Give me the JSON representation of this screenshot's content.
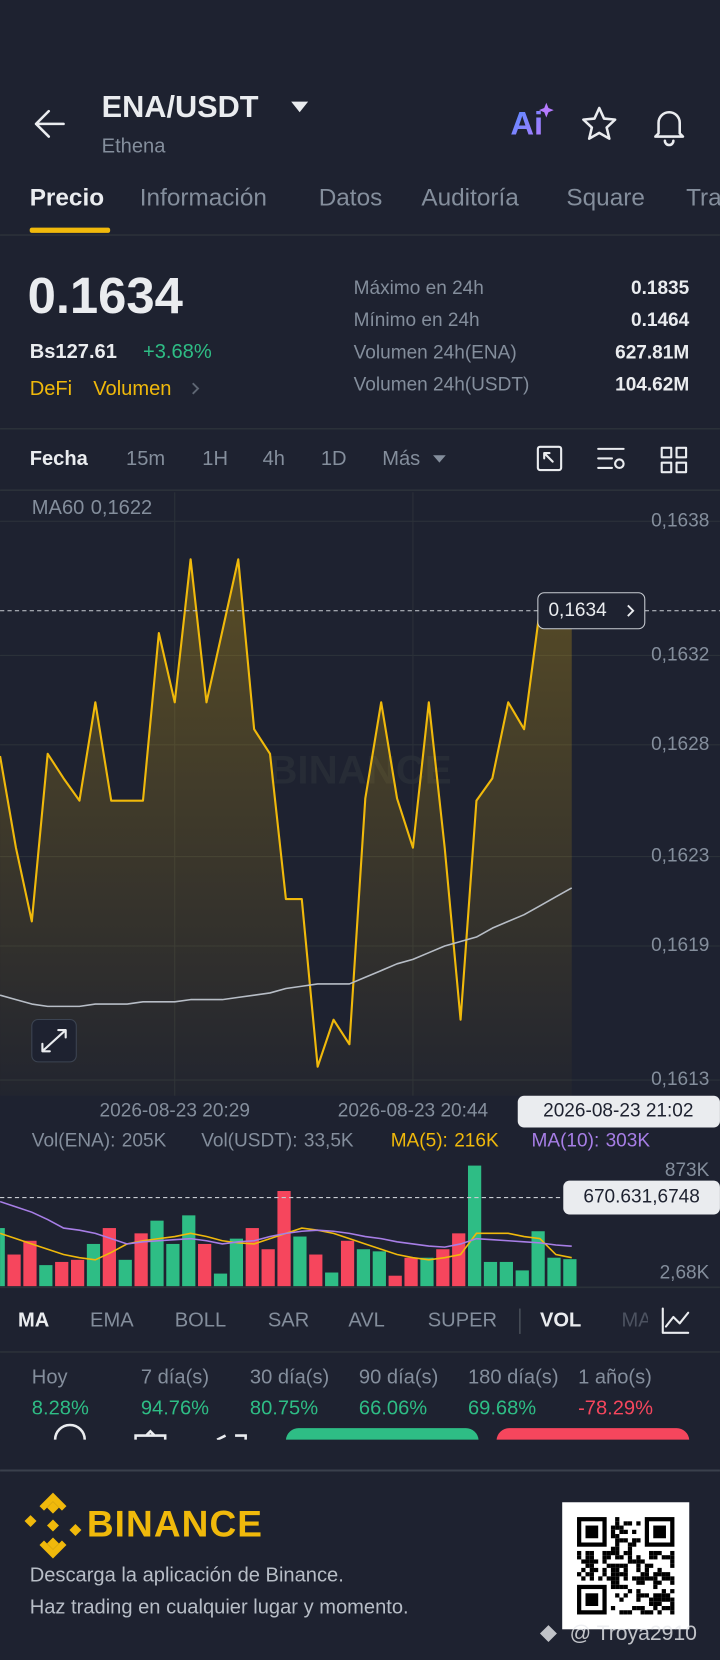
{
  "header": {
    "pair": "ENA/USDT",
    "name": "Ethena",
    "ai": "Ai"
  },
  "tabs": [
    "Precio",
    "Información",
    "Datos",
    "Auditoría",
    "Square",
    "Tra"
  ],
  "price": {
    "last": "0.1634",
    "local": "Bs127.61",
    "change": "+3.68%",
    "tags": [
      "DeFi",
      "Volumen"
    ]
  },
  "stats": [
    {
      "label": "Máximo en 24h",
      "value": "0.1835"
    },
    {
      "label": "Mínimo en 24h",
      "value": "0.1464"
    },
    {
      "label": "Volumen 24h(ENA)",
      "value": "627.81M"
    },
    {
      "label": "Volumen 24h(USDT)",
      "value": "104.62M"
    }
  ],
  "intervals": [
    "Fecha",
    "15m",
    "1H",
    "4h",
    "1D",
    "Más"
  ],
  "chart_data": [
    {
      "type": "line",
      "categories": [
        null,
        null,
        null,
        null,
        null,
        null,
        null,
        null,
        null,
        null,
        null,
        "2026-08-23 20:29",
        null,
        null,
        null,
        null,
        null,
        null,
        null,
        null,
        null,
        null,
        null,
        null,
        null,
        null,
        "2026-08-23 20:44",
        null,
        null,
        null,
        null,
        null,
        null,
        null,
        null,
        null,
        null
      ],
      "series": [
        {
          "color": "#f0b90b",
          "values": [
            0.16275,
            0.16234,
            0.16201,
            0.16276,
            0.16265,
            0.16255,
            0.16299,
            0.16255,
            0.16255,
            0.16255,
            0.1633,
            0.16299,
            0.16363,
            0.16299,
            0.16331,
            0.16363,
            0.16287,
            0.16276,
            0.16211,
            0.16211,
            0.16136,
            0.16157,
            0.16146,
            0.16256,
            0.16299,
            0.16256,
            0.16234,
            0.16299,
            0.16234,
            0.16157,
            0.16255,
            0.16265,
            0.16299,
            0.16287,
            0.16341,
            0.16341,
            0.16341
          ]
        },
        {
          "name": "MA60",
          "value_label": "0,1622",
          "color": "#b7bdc6",
          "values": [
            0.16168,
            0.16166,
            0.16164,
            0.16163,
            0.16163,
            0.16163,
            0.16164,
            0.16164,
            0.16164,
            0.16165,
            0.16165,
            0.16165,
            0.16166,
            0.16166,
            0.16166,
            0.16167,
            0.16168,
            0.16169,
            0.16171,
            0.16172,
            0.16173,
            0.16173,
            0.16173,
            0.16176,
            0.16179,
            0.16182,
            0.16184,
            0.16187,
            0.1619,
            0.16192,
            0.16194,
            0.16198,
            0.16201,
            0.16204,
            0.16208,
            0.16212,
            0.16216
          ]
        }
      ],
      "ylim": [
        0.16123,
        0.16393
      ],
      "yticks": [
        {
          "value": 0.1638,
          "label": "0,1638"
        },
        {
          "value": 0.1632,
          "label": "0,1632"
        },
        {
          "value": 0.1628,
          "label": "0,1628"
        },
        {
          "value": 0.1623,
          "label": "0,1623"
        },
        {
          "value": 0.1619,
          "label": "0,1619"
        },
        {
          "value": 0.1613,
          "label": "0,1613"
        }
      ],
      "last_price": {
        "value": 0.1634,
        "label": "0,1634"
      },
      "crosshair_x_label": "2026-08-23 21:02",
      "watermark": "BINANCE",
      "grid": true
    },
    {
      "type": "bar",
      "series": [
        {
          "name": "Vol(ENA):",
          "value_label": "205K",
          "values": [
            440000,
            240000,
            344000,
            160000,
            184000,
            200000,
            320000,
            440000,
            200000,
            400000,
            496000,
            320000,
            536000,
            320000,
            96000,
            360000,
            440000,
            280000,
            720000,
            376000,
            240000,
            104000,
            344000,
            280000,
            264000,
            80000,
            216000,
            216000,
            280000,
            400000,
            912000,
            184000,
            184000,
            120000,
            416000,
            216000,
            205000
          ],
          "colors": [
            "#2ebd85",
            "#f6465d",
            "#f6465d",
            "#2ebd85",
            "#f6465d",
            "#f6465d",
            "#2ebd85",
            "#f6465d",
            "#2ebd85",
            "#f6465d",
            "#2ebd85",
            "#2ebd85",
            "#2ebd85",
            "#f6465d",
            "#2ebd85",
            "#2ebd85",
            "#f6465d",
            "#f6465d",
            "#f6465d",
            "#2ebd85",
            "#f6465d",
            "#2ebd85",
            "#f6465d",
            "#2ebd85",
            "#2ebd85",
            "#f6465d",
            "#f6465d",
            "#2ebd85",
            "#f6465d",
            "#f6465d",
            "#2ebd85",
            "#2ebd85",
            "#2ebd85",
            "#2ebd85",
            "#2ebd85",
            "#2ebd85",
            "#2ebd85"
          ]
        },
        {
          "name": "MA(5):",
          "value_label": "216K",
          "color": "#f0b90b",
          "values": [
            400000,
            360000,
            320000,
            280000,
            240000,
            216000,
            200000,
            256000,
            320000,
            344000,
            360000,
            376000,
            400000,
            376000,
            344000,
            328000,
            320000,
            360000,
            400000,
            440000,
            424000,
            400000,
            360000,
            320000,
            280000,
            240000,
            216000,
            200000,
            216000,
            240000,
            400000,
            400000,
            400000,
            376000,
            360000,
            240000,
            216000
          ]
        },
        {
          "name": "MA(10):",
          "value_label": "303K",
          "color": "#a77ee6",
          "values": [
            640000,
            600000,
            560000,
            504000,
            440000,
            424000,
            400000,
            360000,
            320000,
            336000,
            344000,
            352000,
            360000,
            344000,
            320000,
            336000,
            344000,
            376000,
            400000,
            416000,
            424000,
            416000,
            400000,
            376000,
            360000,
            336000,
            320000,
            304000,
            296000,
            320000,
            360000,
            352000,
            344000,
            336000,
            328000,
            312000,
            303000
          ]
        }
      ],
      "usdt_volume": {
        "name": "Vol(USDT):",
        "value_label": "33,5K"
      },
      "ylim": [
        0,
        920000
      ],
      "yticks": [
        {
          "value": 873000,
          "label": "873K"
        },
        {
          "value": 2680,
          "label": "2,68K"
        }
      ],
      "crosshair": {
        "value": 670631.6748,
        "label": "670.631,6748"
      }
    }
  ],
  "indicators": [
    "MA",
    "EMA",
    "BOLL",
    "SAR",
    "AVL",
    "SUPER",
    "VOL",
    "MA"
  ],
  "performance": [
    {
      "label": "Hoy",
      "value": "8,28%"
    },
    {
      "label": "7 día(s)",
      "value": "94,76%"
    },
    {
      "label": "30 día(s)",
      "value": "80,75%"
    },
    {
      "label": "90 día(s)",
      "value": "66,06%"
    },
    {
      "label": "180 día(s)",
      "value": "69,68%"
    },
    {
      "label": "1 año(s)",
      "value": "-78,29%"
    }
  ],
  "footer": {
    "brand": "BINANCE",
    "line1": "Descarga la aplicación de Binance.",
    "line2": "Haz trading en cualquier lugar y momento.",
    "watermark": "@ Troya2910"
  }
}
